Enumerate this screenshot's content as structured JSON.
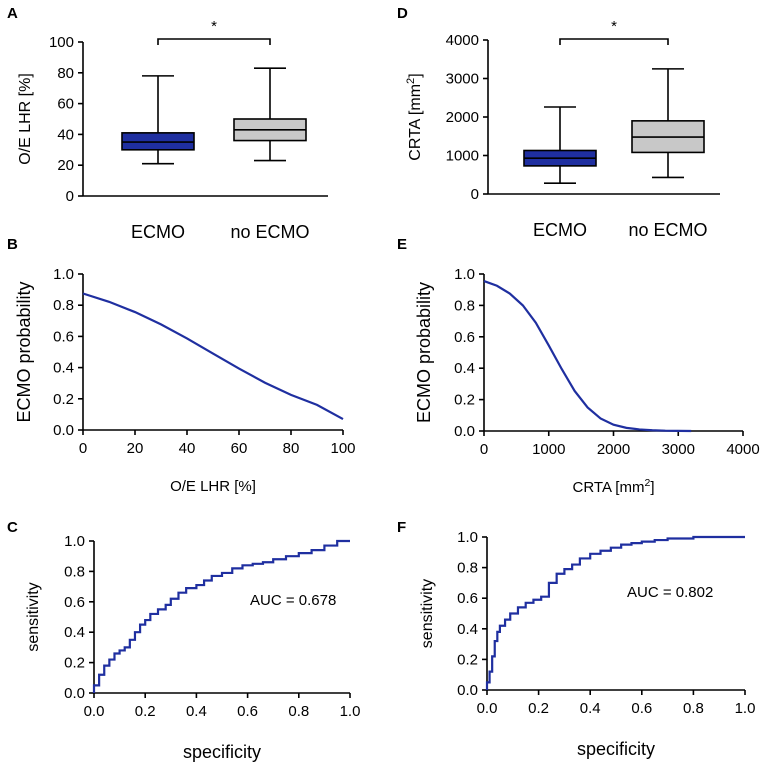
{
  "colors": {
    "ecmo": "#1f2fa0",
    "no_ecmo": "#c8c8c8",
    "curve": "#1f2fa0"
  },
  "chart_data": [
    {
      "panel": "A",
      "type": "box",
      "ylabel": "O/E LHR [%]",
      "ylim": [
        0,
        100
      ],
      "yticks": [
        "0",
        "20",
        "40",
        "60",
        "80",
        "100"
      ],
      "categories": [
        "ECMO",
        "no ECMO"
      ],
      "boxes": [
        {
          "name": "ECMO",
          "min": 21,
          "q1": 30,
          "median": 35,
          "q3": 41,
          "max": 78
        },
        {
          "name": "no ECMO",
          "min": 23,
          "q1": 36,
          "median": 43,
          "q3": 50,
          "max": 83
        }
      ],
      "significance": "*"
    },
    {
      "panel": "D",
      "type": "box",
      "ylabel": "CRTA [mm²]",
      "ylim": [
        0,
        4000
      ],
      "yticks": [
        "0",
        "1000",
        "2000",
        "3000",
        "4000"
      ],
      "categories": [
        "ECMO",
        "no ECMO"
      ],
      "boxes": [
        {
          "name": "ECMO",
          "min": 280,
          "q1": 730,
          "median": 930,
          "q3": 1130,
          "max": 2260
        },
        {
          "name": "no ECMO",
          "min": 430,
          "q1": 1080,
          "median": 1480,
          "q3": 1900,
          "max": 3250
        }
      ],
      "significance": "*"
    },
    {
      "panel": "B",
      "type": "line",
      "xlabel": "O/E LHR [%]",
      "ylabel": "ECMO probability",
      "xlim": [
        0,
        100
      ],
      "ylim": [
        0,
        1
      ],
      "xticks": [
        "0",
        "20",
        "40",
        "60",
        "80",
        "100"
      ],
      "yticks": [
        "0.0",
        "0.2",
        "0.4",
        "0.6",
        "0.8",
        "1.0"
      ],
      "x": [
        0,
        10,
        20,
        30,
        40,
        50,
        60,
        70,
        80,
        90,
        100
      ],
      "y": [
        0.875,
        0.822,
        0.756,
        0.677,
        0.587,
        0.49,
        0.394,
        0.303,
        0.225,
        0.161,
        0.07
      ]
    },
    {
      "panel": "E",
      "type": "line",
      "xlabel": "CRTA [mm²]",
      "ylabel": "ECMO probability",
      "xlim": [
        0,
        4000
      ],
      "ylim": [
        0,
        1
      ],
      "xticks": [
        "0",
        "1000",
        "2000",
        "3000",
        "4000"
      ],
      "yticks": [
        "0.0",
        "0.2",
        "0.4",
        "0.6",
        "0.8",
        "1.0"
      ],
      "x": [
        0,
        200,
        400,
        600,
        800,
        1000,
        1200,
        1400,
        1600,
        1800,
        2000,
        2200,
        2400,
        2600,
        2800,
        3000,
        3200
      ],
      "y": [
        0.955,
        0.925,
        0.875,
        0.8,
        0.69,
        0.545,
        0.395,
        0.255,
        0.15,
        0.08,
        0.04,
        0.02,
        0.01,
        0.005,
        0.002,
        0.001,
        0.0
      ]
    },
    {
      "panel": "C",
      "type": "line",
      "xlabel": "specificity",
      "ylabel": "sensitivity",
      "xlim": [
        0,
        1
      ],
      "ylim": [
        0,
        1
      ],
      "xticks": [
        "0.0",
        "0.2",
        "0.4",
        "0.6",
        "0.8",
        "1.0"
      ],
      "yticks": [
        "0.0",
        "0.2",
        "0.4",
        "0.6",
        "0.8",
        "1.0"
      ],
      "annotation": "AUC = 0.678",
      "x": [
        0,
        0.02,
        0.04,
        0.06,
        0.08,
        0.1,
        0.12,
        0.14,
        0.16,
        0.18,
        0.2,
        0.22,
        0.25,
        0.28,
        0.3,
        0.33,
        0.36,
        0.4,
        0.43,
        0.46,
        0.5,
        0.54,
        0.58,
        0.62,
        0.66,
        0.7,
        0.75,
        0.8,
        0.85,
        0.9,
        0.95,
        1.0
      ],
      "y": [
        0,
        0.05,
        0.12,
        0.18,
        0.22,
        0.26,
        0.28,
        0.3,
        0.35,
        0.4,
        0.45,
        0.48,
        0.52,
        0.55,
        0.58,
        0.62,
        0.66,
        0.69,
        0.71,
        0.74,
        0.77,
        0.79,
        0.82,
        0.84,
        0.85,
        0.86,
        0.88,
        0.9,
        0.92,
        0.94,
        0.97,
        1.0
      ]
    },
    {
      "panel": "F",
      "type": "line",
      "xlabel": "specificity",
      "ylabel": "sensitivity",
      "xlim": [
        0,
        1
      ],
      "ylim": [
        0,
        1
      ],
      "xticks": [
        "0.0",
        "0.2",
        "0.4",
        "0.6",
        "0.8",
        "1.0"
      ],
      "yticks": [
        "0.0",
        "0.2",
        "0.4",
        "0.6",
        "0.8",
        "1.0"
      ],
      "annotation": "AUC = 0.802",
      "x": [
        0,
        0.01,
        0.02,
        0.03,
        0.04,
        0.05,
        0.07,
        0.09,
        0.12,
        0.15,
        0.18,
        0.21,
        0.24,
        0.27,
        0.3,
        0.33,
        0.36,
        0.4,
        0.44,
        0.48,
        0.52,
        0.56,
        0.6,
        0.65,
        0.7,
        0.8,
        0.9,
        1.0
      ],
      "y": [
        0,
        0.05,
        0.12,
        0.22,
        0.32,
        0.38,
        0.42,
        0.46,
        0.5,
        0.54,
        0.57,
        0.59,
        0.61,
        0.7,
        0.76,
        0.79,
        0.82,
        0.86,
        0.89,
        0.91,
        0.93,
        0.95,
        0.96,
        0.97,
        0.98,
        0.99,
        1.0,
        1.0
      ]
    }
  ]
}
